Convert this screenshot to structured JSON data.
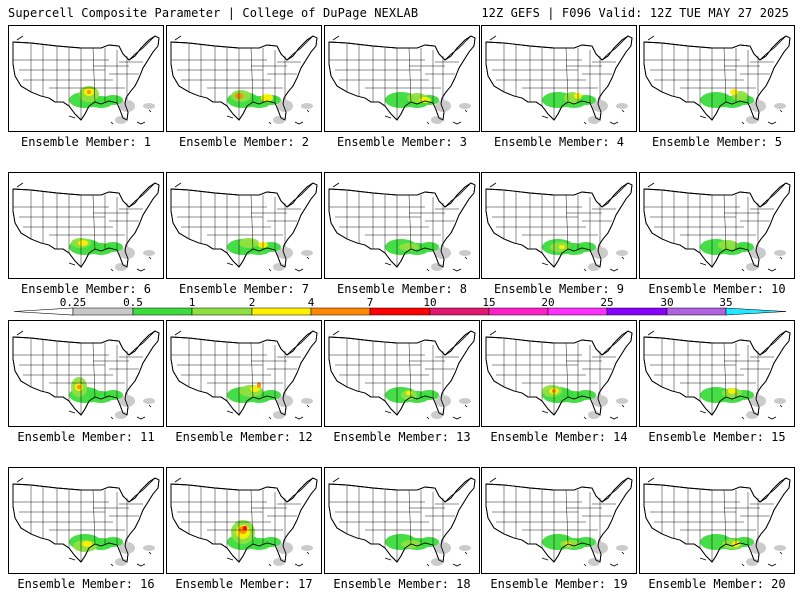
{
  "header": {
    "title": "Supercell Composite Parameter | College of DuPage NEXLAB",
    "run_info": "12Z GEFS | F096 Valid: 12Z TUE MAY 27 2025"
  },
  "member_label_prefix": "Ensemble Member: ",
  "members": [
    1,
    2,
    3,
    4,
    5,
    6,
    7,
    8,
    9,
    10,
    11,
    12,
    13,
    14,
    15,
    16,
    17,
    18,
    19,
    20
  ],
  "legend": {
    "ticks": [
      "0.25",
      "0.5",
      "1",
      "2",
      "4",
      "7",
      "10",
      "15",
      "20",
      "25",
      "30",
      "35"
    ],
    "colors": [
      "#c8c8c8",
      "#3cdc3c",
      "#90e040",
      "#fff000",
      "#ff8800",
      "#ff0000",
      "#e01870",
      "#ff20c8",
      "#ff30ff",
      "#8800ff",
      "#b060e0",
      "#20e8ff"
    ]
  },
  "map_colors": {
    "land": "#ffffff",
    "borders": "#000000",
    "light": "#c8c8c8",
    "green": "#3cdc3c",
    "lime": "#90e040",
    "yellow": "#fff000",
    "orange": "#ff8800",
    "red": "#ff0000"
  }
}
